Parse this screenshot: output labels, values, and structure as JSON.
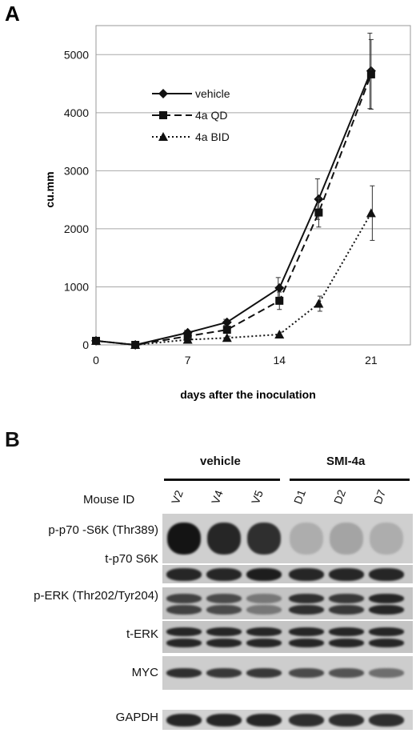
{
  "panelA": {
    "letter": "A",
    "chart_data": {
      "type": "line",
      "xlabel": "days after the inoculation",
      "ylabel": "cu.mm",
      "xlim": [
        0,
        24
      ],
      "ylim": [
        0,
        5500
      ],
      "xticks": [
        0,
        7,
        14,
        21
      ],
      "yticks": [
        0,
        1000,
        2000,
        3000,
        4000,
        5000
      ],
      "grid": "horizontal",
      "legend": "upper-left",
      "series": [
        {
          "name": "vehicle",
          "marker": "diamond",
          "line": "solid",
          "x": [
            0,
            3,
            7,
            10,
            14,
            17,
            21
          ],
          "y": [
            70,
            0,
            210,
            390,
            980,
            2510,
            4720
          ],
          "err": [
            0,
            0,
            40,
            50,
            180,
            350,
            650
          ]
        },
        {
          "name": "4a QD",
          "marker": "square",
          "line": "dashed",
          "x": [
            0,
            3,
            7,
            10,
            14,
            17,
            21
          ],
          "y": [
            70,
            0,
            150,
            260,
            760,
            2280,
            4660
          ],
          "err": [
            0,
            0,
            30,
            60,
            150,
            250,
            600
          ]
        },
        {
          "name": "4a BID",
          "marker": "triangle",
          "line": "dotted",
          "x": [
            0,
            3,
            7,
            10,
            14,
            17,
            21
          ],
          "y": [
            70,
            0,
            90,
            120,
            180,
            710,
            2270
          ],
          "err": [
            0,
            0,
            20,
            30,
            40,
            130,
            470
          ]
        }
      ]
    }
  },
  "panelB": {
    "letter": "B",
    "groups": [
      {
        "label": "vehicle"
      },
      {
        "label": "SMI-4a"
      }
    ],
    "mouse_id_label": "Mouse ID",
    "lanes": [
      "V2",
      "V4",
      "V5",
      "D1",
      "D2",
      "D7"
    ],
    "rows": [
      {
        "label": "p-p70 -S6K (Thr389)",
        "intensity": [
          1.0,
          0.9,
          0.85,
          0.15,
          0.2,
          0.15
        ]
      },
      {
        "label": "t-p70 S6K",
        "intensity": [
          0.9,
          0.9,
          0.95,
          0.9,
          0.9,
          0.9
        ]
      },
      {
        "label": "p-ERK (Thr202/Tyr204)",
        "intensity": [
          0.75,
          0.7,
          0.45,
          0.85,
          0.8,
          0.9
        ]
      },
      {
        "label": "t-ERK",
        "intensity": [
          0.9,
          0.9,
          0.9,
          0.9,
          0.9,
          0.9
        ]
      },
      {
        "label": "MYC",
        "intensity": [
          0.85,
          0.8,
          0.8,
          0.7,
          0.65,
          0.5
        ]
      },
      {
        "label": "GAPDH",
        "intensity": [
          0.9,
          0.9,
          0.9,
          0.85,
          0.85,
          0.85
        ]
      }
    ]
  }
}
